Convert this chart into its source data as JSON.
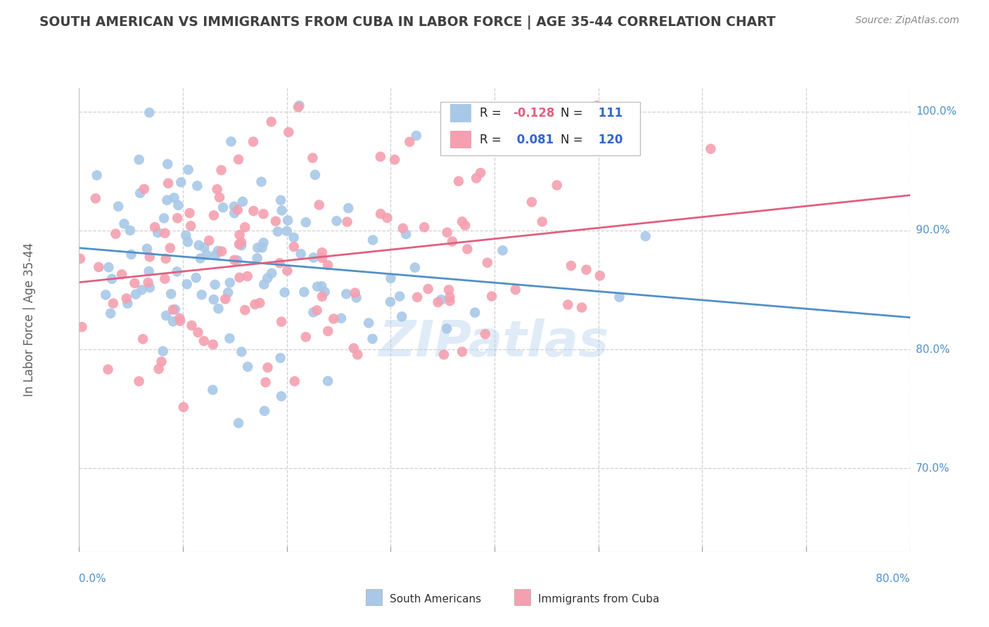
{
  "title": "SOUTH AMERICAN VS IMMIGRANTS FROM CUBA IN LABOR FORCE | AGE 35-44 CORRELATION CHART",
  "source_text": "Source: ZipAtlas.com",
  "ylabel": "In Labor Force | Age 35-44",
  "xlim": [
    0.0,
    0.8
  ],
  "ylim": [
    0.63,
    1.02
  ],
  "blue_R": -0.128,
  "blue_N": 111,
  "pink_R": 0.081,
  "pink_N": 120,
  "blue_color": "#a8c8e8",
  "pink_color": "#f4a0b0",
  "blue_line_color": "#5090c8",
  "pink_line_color": "#e06080",
  "legend_label_blue": "South Americans",
  "legend_label_pink": "Immigrants from Cuba",
  "watermark": "ZIPatlas",
  "background_color": "#ffffff",
  "grid_color": "#d0d0d0",
  "title_color": "#404040",
  "axis_label_color": "#5090c8",
  "r_label_color": "#000000",
  "r_value_color_blue": "#e06080",
  "r_value_color_pink": "#3366cc",
  "n_value_color": "#3366cc"
}
